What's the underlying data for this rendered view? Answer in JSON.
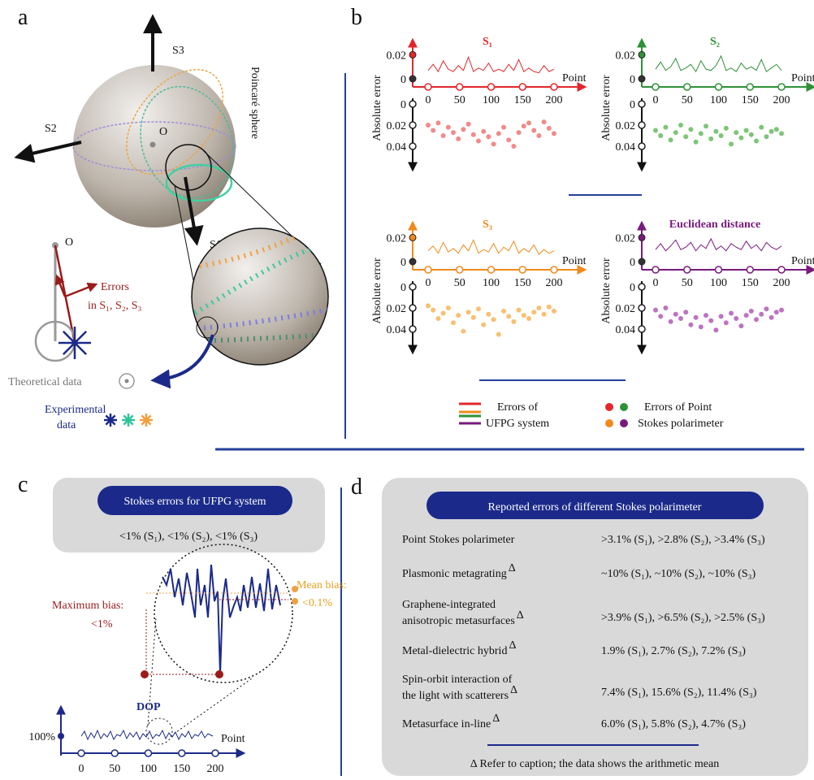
{
  "panel_a": {
    "label": "a",
    "s3": "S3",
    "s2": "S2",
    "s1": "S1",
    "origin": "O",
    "sphere": "Poincaré sphere",
    "origin2": "O",
    "errors": "Errors",
    "errors_of": "in S₁, S₂, S₃",
    "theoretical": "Theoretical data",
    "experimental": [
      "Experimental",
      "data"
    ]
  },
  "panel_b": {
    "label": "b",
    "legend": {
      "line_label": [
        "Errors of",
        "UFPG system"
      ],
      "dot_label": [
        "Errors of Point",
        "Stokes polarimeter"
      ]
    }
  },
  "chart_data": [
    {
      "type": "combo",
      "title": "S₁",
      "color": "#e3262c",
      "y_label": "Absolute error",
      "x_label": "Point",
      "x": [
        0,
        8,
        16,
        24,
        32,
        40,
        48,
        56,
        64,
        72,
        80,
        88,
        96,
        104,
        112,
        120,
        128,
        136,
        144,
        152,
        160,
        168,
        176,
        184,
        192,
        200
      ],
      "xlim": [
        0,
        200
      ],
      "xticks": [
        0,
        50,
        100,
        150,
        200
      ],
      "ylim": [
        0,
        0.025
      ],
      "yticks": [
        0,
        0.02
      ],
      "y2lim": [
        0,
        0.05
      ],
      "y2ticks": [
        0,
        0.02,
        0.04
      ],
      "series": [
        {
          "type": "line",
          "color": "#e3262c",
          "values": [
            0.007,
            0.012,
            0.006,
            0.015,
            0.008,
            0.006,
            0.011,
            0.007,
            0.018,
            0.006,
            0.009,
            0.007,
            0.013,
            0.006,
            0.008,
            0.006,
            0.012,
            0.007,
            0.016,
            0.006,
            0.009,
            0.006,
            0.005,
            0.011,
            0.006,
            0.008
          ]
        },
        {
          "type": "scatter",
          "axis": "y2",
          "color": "#f07575",
          "values": [
            0.02,
            0.025,
            0.018,
            0.03,
            0.022,
            0.027,
            0.033,
            0.024,
            0.019,
            0.029,
            0.035,
            0.026,
            0.031,
            0.038,
            0.028,
            0.022,
            0.034,
            0.04,
            0.027,
            0.021,
            0.018,
            0.025,
            0.03,
            0.017,
            0.023,
            0.028
          ]
        }
      ]
    },
    {
      "type": "combo",
      "title": "S₂",
      "color": "#2e9137",
      "y_label": "Absolute error",
      "x_label": "Point",
      "x": [
        0,
        8,
        16,
        24,
        32,
        40,
        48,
        56,
        64,
        72,
        80,
        88,
        96,
        104,
        112,
        120,
        128,
        136,
        144,
        152,
        160,
        168,
        176,
        184,
        192,
        200
      ],
      "xlim": [
        0,
        200
      ],
      "xticks": [
        0,
        50,
        100,
        150,
        200
      ],
      "ylim": [
        0,
        0.025
      ],
      "yticks": [
        0,
        0.02
      ],
      "y2lim": [
        0,
        0.05
      ],
      "y2ticks": [
        0,
        0.02,
        0.04
      ],
      "series": [
        {
          "type": "line",
          "color": "#2e9137",
          "values": [
            0.008,
            0.014,
            0.007,
            0.01,
            0.017,
            0.007,
            0.009,
            0.012,
            0.006,
            0.015,
            0.008,
            0.007,
            0.011,
            0.019,
            0.007,
            0.009,
            0.006,
            0.013,
            0.008,
            0.01,
            0.007,
            0.016,
            0.006,
            0.009,
            0.012,
            0.007
          ]
        },
        {
          "type": "scatter",
          "axis": "y2",
          "color": "#66bb5f",
          "values": [
            0.025,
            0.03,
            0.022,
            0.034,
            0.027,
            0.02,
            0.031,
            0.024,
            0.036,
            0.028,
            0.021,
            0.033,
            0.026,
            0.03,
            0.023,
            0.038,
            0.027,
            0.032,
            0.025,
            0.029,
            0.035,
            0.022,
            0.031,
            0.026,
            0.024,
            0.028
          ]
        }
      ]
    },
    {
      "type": "combo",
      "title": "S₃",
      "color": "#f08a1c",
      "y_label": "Absolute error",
      "x_label": "Point",
      "x": [
        0,
        8,
        16,
        24,
        32,
        40,
        48,
        56,
        64,
        72,
        80,
        88,
        96,
        104,
        112,
        120,
        128,
        136,
        144,
        152,
        160,
        168,
        176,
        184,
        192,
        200
      ],
      "xlim": [
        0,
        200
      ],
      "xticks": [
        0,
        50,
        100,
        150,
        200
      ],
      "ylim": [
        0,
        0.025
      ],
      "yticks": [
        0,
        0.02
      ],
      "y2lim": [
        0,
        0.05
      ],
      "y2ticks": [
        0,
        0.02,
        0.04
      ],
      "series": [
        {
          "type": "line",
          "color": "#f08a1c",
          "values": [
            0.009,
            0.013,
            0.007,
            0.016,
            0.008,
            0.011,
            0.007,
            0.014,
            0.009,
            0.018,
            0.007,
            0.01,
            0.008,
            0.015,
            0.007,
            0.012,
            0.009,
            0.017,
            0.007,
            0.011,
            0.008,
            0.014,
            0.006,
            0.01,
            0.007,
            0.009
          ]
        },
        {
          "type": "scatter",
          "axis": "y2",
          "color": "#f7b557",
          "values": [
            0.018,
            0.022,
            0.03,
            0.025,
            0.02,
            0.034,
            0.027,
            0.042,
            0.024,
            0.029,
            0.021,
            0.036,
            0.026,
            0.031,
            0.045,
            0.023,
            0.028,
            0.033,
            0.022,
            0.027,
            0.03,
            0.024,
            0.02,
            0.026,
            0.019,
            0.023
          ]
        }
      ]
    },
    {
      "type": "combo",
      "title": "Euclidean distance",
      "color": "#7a1a7e",
      "y_label": "Absolute error",
      "x_label": "Point",
      "x": [
        0,
        8,
        16,
        24,
        32,
        40,
        48,
        56,
        64,
        72,
        80,
        88,
        96,
        104,
        112,
        120,
        128,
        136,
        144,
        152,
        160,
        168,
        176,
        184,
        192,
        200
      ],
      "xlim": [
        0,
        200
      ],
      "xticks": [
        0,
        50,
        100,
        150,
        200
      ],
      "ylim": [
        0,
        0.025
      ],
      "yticks": [
        0,
        0.02
      ],
      "y2lim": [
        0,
        0.05
      ],
      "y2ticks": [
        0,
        0.02,
        0.04
      ],
      "series": [
        {
          "type": "line",
          "color": "#7a1a7e",
          "values": [
            0.01,
            0.015,
            0.009,
            0.013,
            0.018,
            0.01,
            0.012,
            0.016,
            0.009,
            0.014,
            0.011,
            0.019,
            0.01,
            0.013,
            0.009,
            0.015,
            0.012,
            0.01,
            0.017,
            0.011,
            0.014,
            0.009,
            0.016,
            0.012,
            0.01,
            0.013
          ]
        },
        {
          "type": "scatter",
          "axis": "y2",
          "color": "#b35ab6",
          "values": [
            0.022,
            0.028,
            0.02,
            0.033,
            0.026,
            0.03,
            0.024,
            0.036,
            0.029,
            0.038,
            0.027,
            0.032,
            0.041,
            0.028,
            0.034,
            0.025,
            0.03,
            0.037,
            0.027,
            0.023,
            0.031,
            0.026,
            0.021,
            0.029,
            0.024,
            0.022
          ]
        }
      ]
    }
  ],
  "panel_c": {
    "label": "c",
    "box_title": "Stokes errors for UFPG system",
    "box_text": "<1% (S₁), <1% (S₂), <1% (S₃)",
    "mean_bias": [
      "Mean bias:",
      "<0.1%"
    ],
    "max_bias": [
      "Maximum bias:",
      "<1%"
    ],
    "dop": "DOP",
    "y_tick_label": "100%",
    "x_label": "Point",
    "xticks": [
      0,
      50,
      100,
      150,
      200
    ]
  },
  "panel_d": {
    "label": "d",
    "title": "Reported errors of different Stokes polarimeter",
    "rows": [
      {
        "name": [
          "Point Stokes polarimeter"
        ],
        "value": ">3.1% (S₁), >2.8% (S₂), >3.4% (S₃)"
      },
      {
        "name": [
          "Plasmonic metagrating"
        ],
        "note": "Δ",
        "value": "~10% (S₁), ~10% (S₂), ~10% (S₃)"
      },
      {
        "name": [
          "Graphene-integrated",
          "anisotropic metasurfaces"
        ],
        "note": "Δ",
        "value": ">3.9% (S₁), >6.5% (S₂), >2.5% (S₃)"
      },
      {
        "name": [
          "Metal-dielectric hybrid"
        ],
        "note": "Δ",
        "value": "1.9% (S₁), 2.7% (S₂), 7.2% (S₃)"
      },
      {
        "name": [
          "Spin-orbit interaction of",
          "the light with scatterers"
        ],
        "note": "Δ",
        "value": "7.4% (S₁), 15.6% (S₂), 11.4% (S₃)"
      },
      {
        "name": [
          "Metasurface in-line"
        ],
        "note": "Δ",
        "value": "6.0% (S₁), 5.8% (S₂), 4.7% (S₃)"
      }
    ],
    "footnote": "Δ Refer to caption; the data shows the arithmetic mean"
  }
}
